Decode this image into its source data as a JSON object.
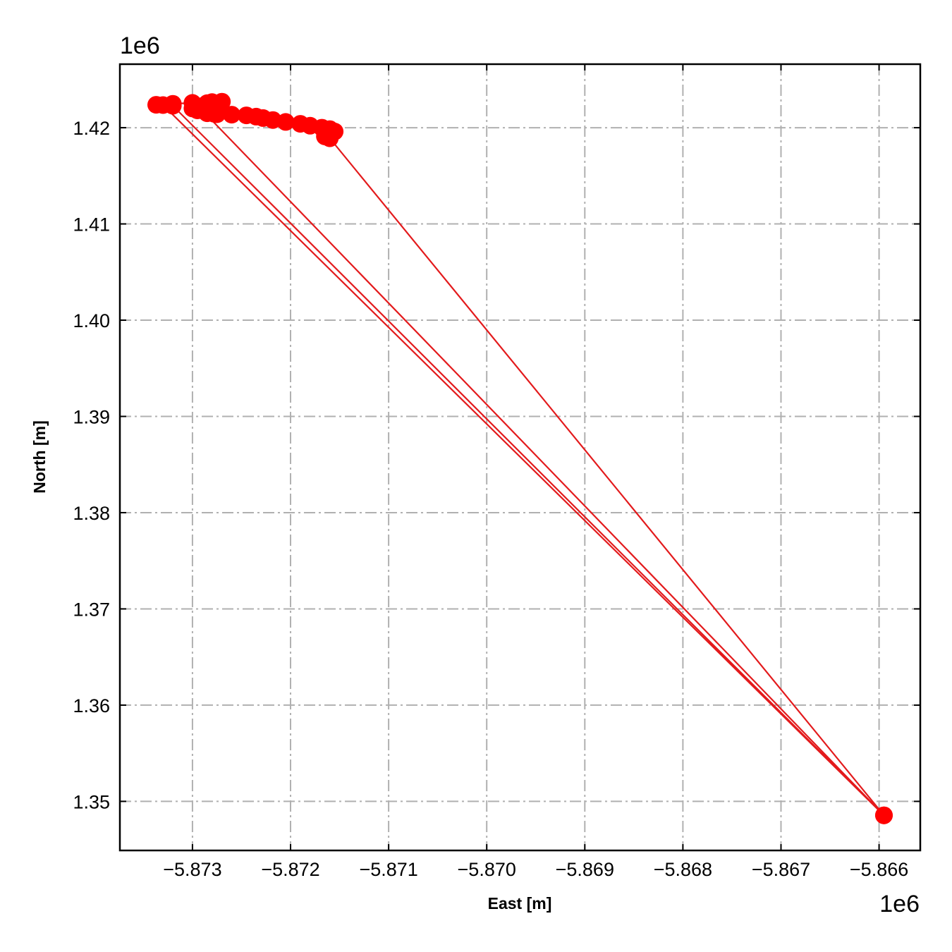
{
  "chart_data": {
    "type": "line",
    "title": "",
    "xlabel": "East [m]",
    "ylabel": "North [m]",
    "x_offset_label": "1e6",
    "y_offset_label": "1e6",
    "xlim": [
      -5.87374,
      -5.86558
    ],
    "ylim": [
      1.3449,
      1.4266
    ],
    "x_ticks": [
      -5.873,
      -5.872,
      -5.871,
      -5.87,
      -5.869,
      -5.868,
      -5.867,
      -5.866
    ],
    "x_tick_labels": [
      "−5.873",
      "−5.872",
      "−5.871",
      "−5.870",
      "−5.869",
      "−5.868",
      "−5.867",
      "−5.866"
    ],
    "y_ticks": [
      1.35,
      1.36,
      1.37,
      1.38,
      1.39,
      1.4,
      1.41,
      1.42
    ],
    "y_tick_labels": [
      "1.35",
      "1.36",
      "1.37",
      "1.38",
      "1.39",
      "1.40",
      "1.41",
      "1.42"
    ],
    "grid": true,
    "series": [
      {
        "color": "#ff0000",
        "line_color": "#e31a1c",
        "marker": "circle",
        "points": [
          [
            -5.87337,
            1.42238
          ],
          [
            -5.8732,
            1.42248
          ],
          [
            -5.873,
            1.42258
          ],
          [
            -5.8728,
            1.42266
          ],
          [
            -5.8727,
            1.4227
          ],
          [
            -5.87285,
            1.42255
          ],
          [
            -5.8729,
            1.42225
          ],
          [
            -5.873,
            1.422
          ],
          [
            -5.87295,
            1.4218
          ],
          [
            -5.87285,
            1.4216
          ],
          [
            -5.87278,
            1.42145
          ],
          [
            -5.87285,
            1.4215
          ],
          [
            -5.87275,
            1.4214
          ],
          [
            -5.8726,
            1.42135
          ],
          [
            -5.87245,
            1.42128
          ],
          [
            -5.87235,
            1.42115
          ],
          [
            -5.87228,
            1.421
          ],
          [
            -5.87218,
            1.4208
          ],
          [
            -5.87205,
            1.4206
          ],
          [
            -5.8719,
            1.4204
          ],
          [
            -5.8718,
            1.4202
          ],
          [
            -5.87168,
            1.42
          ],
          [
            -5.8716,
            1.41985
          ],
          [
            -5.87155,
            1.4196
          ],
          [
            -5.87165,
            1.4191
          ],
          [
            -5.8716,
            1.4189
          ],
          [
            -5.86595,
            1.34855
          ],
          [
            -5.8732,
            1.42228
          ],
          [
            -5.8733,
            1.42235
          ],
          [
            -5.86595,
            1.34855
          ],
          [
            -5.8729,
            1.4218
          ]
        ]
      }
    ]
  }
}
